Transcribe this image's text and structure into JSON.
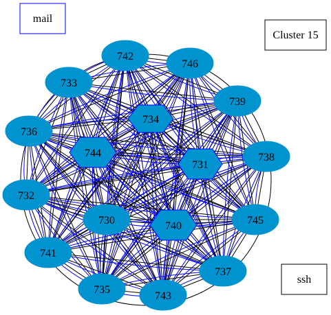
{
  "legend": {
    "mail": {
      "label": "mail",
      "color": "#0000ff"
    },
    "cluster": {
      "label": "Cluster 15",
      "color": "#000000"
    },
    "ssh": {
      "label": "ssh",
      "color": "#000000"
    }
  },
  "colors": {
    "node_fill": "#0093cf",
    "mail_edge": "#0000ff",
    "ssh_edge": "#000000"
  },
  "nodes": [
    {
      "id": "742",
      "label": "742",
      "shape": "ellipse"
    },
    {
      "id": "746",
      "label": "746",
      "shape": "ellipse"
    },
    {
      "id": "733",
      "label": "733",
      "shape": "ellipse"
    },
    {
      "id": "739",
      "label": "739",
      "shape": "ellipse"
    },
    {
      "id": "734",
      "label": "734",
      "shape": "hexagon"
    },
    {
      "id": "736",
      "label": "736",
      "shape": "ellipse"
    },
    {
      "id": "744",
      "label": "744",
      "shape": "hexagon"
    },
    {
      "id": "738",
      "label": "738",
      "shape": "ellipse"
    },
    {
      "id": "731",
      "label": "731",
      "shape": "hexagon"
    },
    {
      "id": "732",
      "label": "732",
      "shape": "ellipse"
    },
    {
      "id": "730",
      "label": "730",
      "shape": "ellipse"
    },
    {
      "id": "740",
      "label": "740",
      "shape": "hexagon"
    },
    {
      "id": "745",
      "label": "745",
      "shape": "ellipse"
    },
    {
      "id": "741",
      "label": "741",
      "shape": "ellipse"
    },
    {
      "id": "737",
      "label": "737",
      "shape": "ellipse"
    },
    {
      "id": "735",
      "label": "735",
      "shape": "ellipse"
    },
    {
      "id": "743",
      "label": "743",
      "shape": "ellipse"
    }
  ]
}
